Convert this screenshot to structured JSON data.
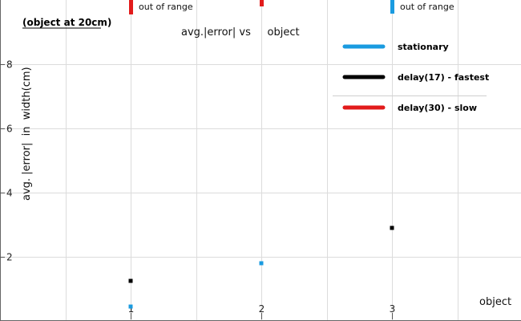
{
  "chart_data": {
    "type": "scatter",
    "title": "avg.|error| vs     object",
    "note": "(object at 20cm)",
    "xlabel": "object",
    "ylabel": "avg. |error|  in  width(cm)",
    "xlim": [
      0,
      3.9
    ],
    "ylim": [
      0,
      10
    ],
    "x_ticks": [
      1,
      2,
      3
    ],
    "y_ticks": [
      2,
      4,
      6,
      8
    ],
    "grid": true,
    "legend_position": "top-right",
    "series": [
      {
        "name": "stationary",
        "color": "#1a9be0",
        "points": [
          {
            "x": 1,
            "y": 0.45
          },
          {
            "x": 2,
            "y": 1.8
          }
        ],
        "out_of_range_x": [
          3
        ]
      },
      {
        "name": "delay(17) - fastest",
        "color": "#000000",
        "points": [
          {
            "x": 1,
            "y": 1.25
          },
          {
            "x": 3,
            "y": 2.9
          }
        ],
        "out_of_range_x": []
      },
      {
        "name": "delay(30) - slow",
        "color": "#e21b1b",
        "points": [],
        "out_of_range_x": [
          1,
          2
        ]
      }
    ],
    "annotations": [
      {
        "x": 1,
        "text": "out of range"
      },
      {
        "x": 3,
        "text": "out of range"
      }
    ]
  }
}
